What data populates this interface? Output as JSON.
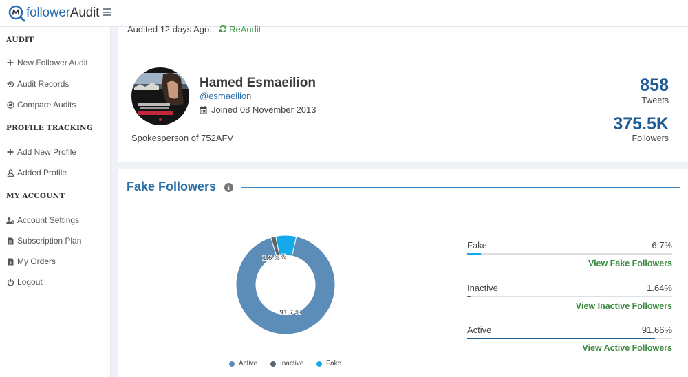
{
  "app": {
    "logo_prefix": "follower",
    "logo_suffix": "Audit"
  },
  "sidebar": {
    "sections": [
      {
        "title": "AUDIT",
        "items": [
          {
            "label": "New Follower Audit",
            "icon": "plus-icon"
          },
          {
            "label": "Audit Records",
            "icon": "history-icon"
          },
          {
            "label": "Compare Audits",
            "icon": "compare-icon"
          }
        ]
      },
      {
        "title": "PROFILE TRACKING",
        "items": [
          {
            "label": "Add New Profile",
            "icon": "plus-icon"
          },
          {
            "label": "Added Profile",
            "icon": "user-icon"
          }
        ]
      },
      {
        "title": "MY ACCOUNT",
        "items": [
          {
            "label": "Account Settings",
            "icon": "user-gear-icon"
          },
          {
            "label": "Subscription Plan",
            "icon": "document-icon"
          },
          {
            "label": "My Orders",
            "icon": "order-icon"
          },
          {
            "label": "Logout",
            "icon": "power-icon"
          }
        ]
      }
    ]
  },
  "audit": {
    "status_text": "Audited 12 days Ago.",
    "reaudit_label": "ReAudit"
  },
  "profile": {
    "name": "Hamed Esmaeilion",
    "handle": "@esmaeilion",
    "joined": "Joined 08 November 2013",
    "bio": "Spokesperson of 752AFV",
    "tweets_value": "858",
    "tweets_label": "Tweets",
    "followers_value": "375.5K",
    "followers_label": "Followers"
  },
  "fake_followers": {
    "title": "Fake Followers",
    "rows": [
      {
        "label": "Fake",
        "value": "6.7%",
        "percent": 6.7,
        "link": "View Fake Followers"
      },
      {
        "label": "Inactive",
        "value": "1.64%",
        "percent": 1.64,
        "link": "View Inactive Followers"
      },
      {
        "label": "Active",
        "value": "91.66%",
        "percent": 91.66,
        "link": "View Active Followers"
      }
    ]
  },
  "chart_data": {
    "type": "pie",
    "categories": [
      "Active",
      "Inactive",
      "Fake"
    ],
    "values": [
      91.7,
      1.6,
      6.7
    ],
    "slice_labels": [
      "91.7 %",
      "1.6 %",
      "%"
    ],
    "colors": [
      "#5b8db8",
      "#5a6570",
      "#13a9ea"
    ],
    "legend": "bottom"
  }
}
